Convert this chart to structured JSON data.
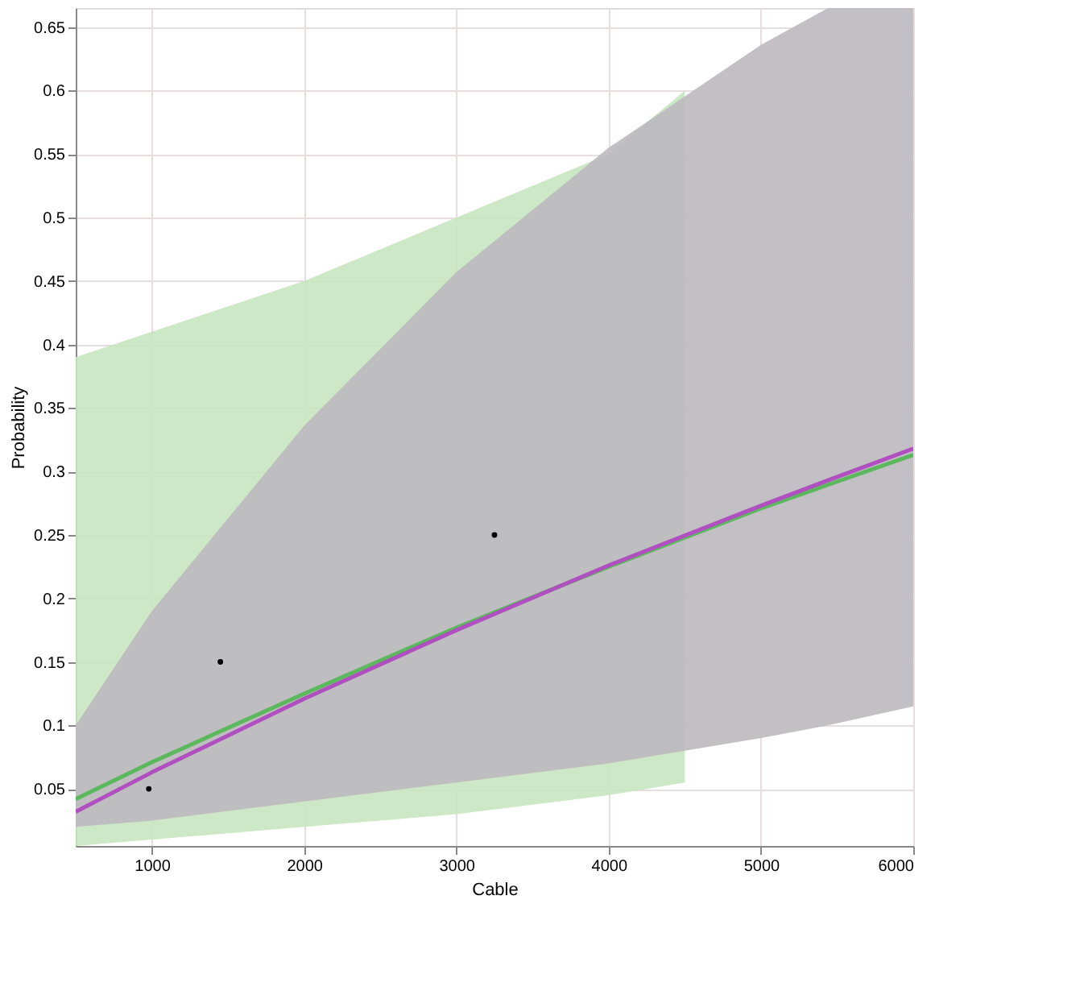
{
  "chart_data": {
    "type": "line",
    "xlabel": "Cable",
    "ylabel": "Probability",
    "xlim": [
      500,
      6000
    ],
    "xticks": [
      1000,
      2000,
      3000,
      4000,
      5000,
      6000
    ],
    "ylim": [
      0.005,
      0.665
    ],
    "yticks": [
      0.05,
      0.1,
      0.15,
      0.2,
      0.25,
      0.3,
      0.35,
      0.4,
      0.45,
      0.5,
      0.55,
      0.6,
      0.65
    ],
    "grid": true,
    "line_style": "solid",
    "marker": "none",
    "series": [
      {
        "color": "#5cb85c",
        "x": [
          500,
          1000,
          2000,
          3000,
          4000,
          4500,
          5000,
          6000
        ],
        "values": [
          0.042,
          0.071,
          0.125,
          0.177,
          0.225,
          0.248,
          0.271,
          0.313
        ],
        "upper": [
          0.39,
          0.41,
          0.45,
          0.5,
          0.55,
          0.6,
          null,
          null
        ],
        "lower": [
          0.005,
          0.01,
          0.02,
          0.03,
          0.045,
          0.055,
          null,
          null
        ]
      },
      {
        "color": "#b04fc0",
        "x": [
          500,
          1000,
          2000,
          3000,
          4000,
          5000,
          5440,
          6000
        ],
        "values": [
          0.032,
          0.063,
          0.121,
          0.175,
          0.226,
          0.273,
          0.293,
          0.318
        ],
        "upper": [
          0.1,
          0.19,
          0.336,
          0.457,
          0.555,
          0.636,
          0.665,
          0.665
        ],
        "lower": [
          0.02,
          0.025,
          0.04,
          0.055,
          0.07,
          0.09,
          0.1,
          0.115
        ]
      },
      {
        "type": "scatter",
        "marker": "circle",
        "color": "#000000",
        "x": [
          980,
          1450,
          3250
        ],
        "values": [
          0.05,
          0.15,
          0.25
        ]
      }
    ]
  }
}
